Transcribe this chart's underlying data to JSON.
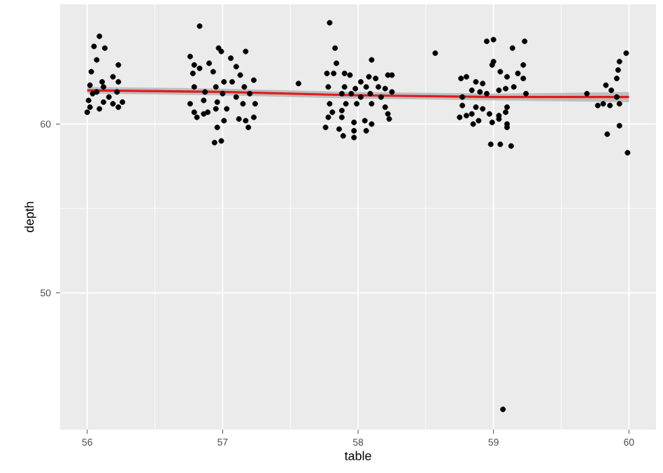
{
  "chart_data": {
    "type": "scatter",
    "xlabel": "table",
    "ylabel": "depth",
    "xlim": [
      55.8,
      60.2
    ],
    "ylim": [
      41.9,
      67.1
    ],
    "xticks": [
      56,
      57,
      58,
      59,
      60
    ],
    "yticks": [
      50,
      60
    ],
    "grid": true,
    "series": [
      {
        "color": "#000000",
        "x": [
          56.09,
          56.05,
          56.13,
          56.07,
          56.23,
          56.03,
          56.19,
          56.23,
          56.02,
          56.12,
          56.22,
          56.04,
          56.16,
          56.01,
          56.12,
          56.26,
          56.19,
          56.02,
          56.23,
          56.0,
          56.09,
          56.07,
          56.11,
          56.83,
          56.97,
          56.99,
          57.17,
          56.76,
          57.06,
          56.9,
          56.79,
          57.1,
          56.83,
          56.93,
          56.78,
          57.13,
          57.23,
          57.01,
          57.07,
          56.79,
          56.95,
          57.16,
          56.87,
          57.0,
          57.1,
          57.2,
          56.76,
          56.86,
          56.96,
          57.15,
          57.24,
          56.79,
          56.89,
          57.03,
          56.81,
          56.86,
          56.95,
          57.23,
          57.01,
          57.12,
          57.17,
          57.19,
          56.96,
          56.94,
          56.99,
          57.79,
          57.83,
          57.56,
          58.57,
          57.84,
          58.1,
          57.77,
          57.82,
          57.9,
          57.94,
          58.02,
          58.08,
          58.13,
          58.22,
          58.25,
          57.78,
          57.9,
          57.98,
          58.06,
          58.15,
          58.2,
          57.88,
          57.95,
          58.02,
          58.09,
          58.17,
          58.25,
          57.79,
          57.91,
          57.99,
          58.1,
          58.2,
          57.81,
          57.88,
          58.22,
          57.78,
          57.88,
          58.23,
          57.97,
          58.05,
          58.1,
          57.76,
          57.86,
          57.97,
          58.06,
          57.89,
          57.97,
          58.95,
          59.0,
          59.14,
          59.23,
          59.0,
          58.99,
          59.22,
          59.05,
          59.1,
          59.18,
          58.76,
          58.8,
          58.87,
          58.92,
          59.22,
          58.84,
          58.9,
          59.04,
          59.09,
          59.15,
          59.24,
          58.77,
          58.95,
          58.77,
          58.87,
          58.75,
          58.8,
          58.84,
          58.92,
          58.97,
          59.04,
          59.09,
          59.1,
          58.85,
          58.89,
          58.99,
          59.04,
          59.1,
          59.1,
          58.98,
          59.05,
          59.13,
          59.07,
          59.69,
          59.98,
          59.93,
          59.92,
          59.91,
          59.83,
          59.87,
          59.91,
          59.77,
          59.81,
          59.86,
          59.93,
          59.84,
          59.93,
          59.99
        ],
        "values": [
          65.2,
          64.6,
          64.5,
          63.8,
          63.5,
          63.1,
          62.8,
          62.5,
          62.3,
          62.2,
          61.9,
          61.8,
          61.6,
          61.4,
          61.3,
          61.3,
          61.2,
          61.0,
          61.0,
          60.7,
          60.9,
          61.9,
          62.5,
          65.8,
          64.5,
          64.3,
          64.3,
          64.0,
          63.9,
          63.6,
          63.5,
          63.4,
          63.3,
          63.1,
          63.0,
          62.9,
          62.6,
          62.5,
          62.5,
          62.2,
          62.2,
          62.2,
          61.9,
          61.8,
          61.6,
          61.8,
          61.2,
          61.4,
          61.3,
          61.2,
          61.2,
          60.7,
          60.7,
          60.9,
          60.4,
          60.6,
          60.9,
          60.4,
          60.2,
          60.3,
          60.2,
          59.8,
          59.8,
          58.9,
          59.0,
          66.0,
          64.5,
          62.4,
          64.2,
          63.6,
          63.8,
          63.0,
          63.0,
          63.0,
          62.9,
          62.5,
          62.8,
          62.7,
          62.9,
          62.9,
          62.2,
          62.2,
          62.1,
          62.2,
          62.2,
          62.1,
          61.8,
          61.8,
          61.6,
          61.8,
          61.6,
          61.9,
          61.2,
          61.2,
          61.2,
          61.2,
          61.0,
          60.7,
          60.8,
          60.6,
          60.4,
          60.4,
          60.3,
          60.1,
          60.2,
          60.0,
          59.8,
          59.7,
          59.6,
          59.6,
          59.3,
          59.2,
          64.9,
          65.0,
          64.5,
          64.9,
          63.7,
          63.5,
          63.5,
          63.1,
          62.8,
          63.0,
          62.7,
          62.8,
          62.5,
          62.4,
          62.7,
          62.0,
          61.9,
          62.0,
          62.1,
          62.2,
          61.8,
          61.6,
          61.8,
          61.1,
          61.0,
          60.4,
          60.5,
          60.6,
          60.9,
          60.6,
          60.5,
          60.7,
          61.0,
          60.0,
          60.2,
          60.1,
          60.3,
          60.0,
          59.8,
          58.8,
          58.8,
          58.7,
          43.1,
          61.8,
          64.2,
          63.7,
          63.2,
          62.7,
          62.3,
          62.0,
          61.6,
          61.1,
          61.2,
          61.1,
          61.2,
          59.4,
          59.9,
          58.3
        ]
      },
      {
        "type": "line",
        "color": "#e31a1c",
        "x": [
          56,
          57,
          58,
          59,
          60
        ],
        "values": [
          62.0,
          61.9,
          61.7,
          61.6,
          61.6
        ],
        "lower": [
          61.8,
          61.7,
          61.5,
          61.4,
          61.3
        ],
        "upper": [
          62.2,
          62.1,
          61.9,
          61.8,
          61.9
        ]
      }
    ]
  }
}
